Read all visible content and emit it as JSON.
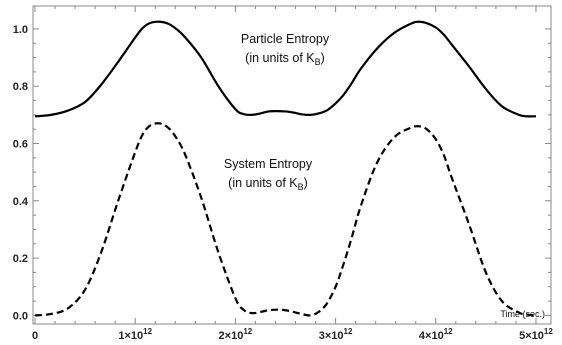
{
  "chart_data": {
    "type": "line",
    "xlim": [
      -20000000000.0,
      5150000000000.0
    ],
    "ylim": [
      -0.03,
      1.08
    ],
    "xticks": [
      {
        "value": 0,
        "label": "0",
        "exp": ""
      },
      {
        "value": 1000000000000.0,
        "label": "1×10",
        "exp": "12"
      },
      {
        "value": 2000000000000.0,
        "label": "2×10",
        "exp": "12"
      },
      {
        "value": 3000000000000.0,
        "label": "3×10",
        "exp": "12"
      },
      {
        "value": 4000000000000.0,
        "label": "4×10",
        "exp": "12"
      },
      {
        "value": 5000000000000.0,
        "label": "5×10",
        "exp": "12"
      }
    ],
    "yticks": [
      {
        "value": 0.0,
        "label": "0.0"
      },
      {
        "value": 0.2,
        "label": "0.2"
      },
      {
        "value": 0.4,
        "label": "0.4"
      },
      {
        "value": 0.6,
        "label": "0.6"
      },
      {
        "value": 0.8,
        "label": "0.8"
      },
      {
        "value": 1.0,
        "label": "1.0"
      }
    ],
    "annotations": {
      "particle_line1": "Particle Entropy",
      "particle_line2_pre": "(in units of K",
      "particle_sub": "B",
      "particle_post": ")",
      "system_line1": "System Entropy",
      "system_line2_pre": "(in units of K",
      "system_sub": "B",
      "system_post": ")",
      "time_label": "Time (sec.)"
    },
    "series": [
      {
        "style": "solid",
        "x": [
          0,
          160000000000.0,
          330000000000.0,
          500000000000.0,
          660000000000.0,
          830000000000.0,
          1000000000000.0,
          1080000000000.0,
          1160000000000.0,
          1250000000000.0,
          1330000000000.0,
          1410000000000.0,
          1500000000000.0,
          1660000000000.0,
          1830000000000.0,
          2000000000000.0,
          2080000000000.0,
          2160000000000.0,
          2250000000000.0,
          2330000000000.0,
          2410000000000.0,
          2500000000000.0,
          2580000000000.0,
          2660000000000.0,
          2750000000000.0,
          2830000000000.0,
          2910000000000.0,
          3000000000000.0,
          3080000000000.0,
          3160000000000.0,
          3250000000000.0,
          3410000000000.0,
          3580000000000.0,
          3750000000000.0,
          3830000000000.0,
          3910000000000.0,
          4000000000000.0,
          4080000000000.0,
          4160000000000.0,
          4330000000000.0,
          4500000000000.0,
          4660000000000.0,
          4830000000000.0,
          4910000000000.0,
          5000000000000.0
        ],
        "y": [
          0.695,
          0.7,
          0.715,
          0.745,
          0.805,
          0.885,
          0.97,
          1.005,
          1.022,
          1.025,
          1.018,
          1.0,
          0.97,
          0.9,
          0.8,
          0.72,
          0.703,
          0.7,
          0.705,
          0.712,
          0.713,
          0.712,
          0.708,
          0.702,
          0.7,
          0.705,
          0.715,
          0.74,
          0.77,
          0.81,
          0.86,
          0.93,
          0.985,
          1.018,
          1.025,
          1.02,
          1.005,
          0.98,
          0.945,
          0.87,
          0.79,
          0.73,
          0.7,
          0.695,
          0.695
        ]
      },
      {
        "style": "dashed",
        "x": [
          0,
          160000000000.0,
          330000000000.0,
          500000000000.0,
          660000000000.0,
          830000000000.0,
          1000000000000.0,
          1080000000000.0,
          1160000000000.0,
          1250000000000.0,
          1330000000000.0,
          1410000000000.0,
          1500000000000.0,
          1660000000000.0,
          1830000000000.0,
          2000000000000.0,
          2080000000000.0,
          2160000000000.0,
          2250000000000.0,
          2330000000000.0,
          2410000000000.0,
          2500000000000.0,
          2580000000000.0,
          2660000000000.0,
          2750000000000.0,
          2830000000000.0,
          2910000000000.0,
          3000000000000.0,
          3080000000000.0,
          3160000000000.0,
          3250000000000.0,
          3410000000000.0,
          3580000000000.0,
          3750000000000.0,
          3830000000000.0,
          3910000000000.0,
          4000000000000.0,
          4080000000000.0,
          4160000000000.0,
          4330000000000.0,
          4500000000000.0,
          4660000000000.0,
          4830000000000.0,
          4910000000000.0,
          5000000000000.0
        ],
        "y": [
          0.0,
          0.005,
          0.025,
          0.09,
          0.22,
          0.4,
          0.57,
          0.635,
          0.665,
          0.67,
          0.655,
          0.62,
          0.56,
          0.41,
          0.22,
          0.06,
          0.02,
          0.008,
          0.012,
          0.018,
          0.02,
          0.018,
          0.012,
          0.005,
          0.0,
          0.012,
          0.04,
          0.1,
          0.18,
          0.27,
          0.38,
          0.53,
          0.62,
          0.655,
          0.66,
          0.65,
          0.615,
          0.56,
          0.48,
          0.32,
          0.15,
          0.05,
          0.01,
          0.003,
          0.0
        ]
      }
    ]
  }
}
